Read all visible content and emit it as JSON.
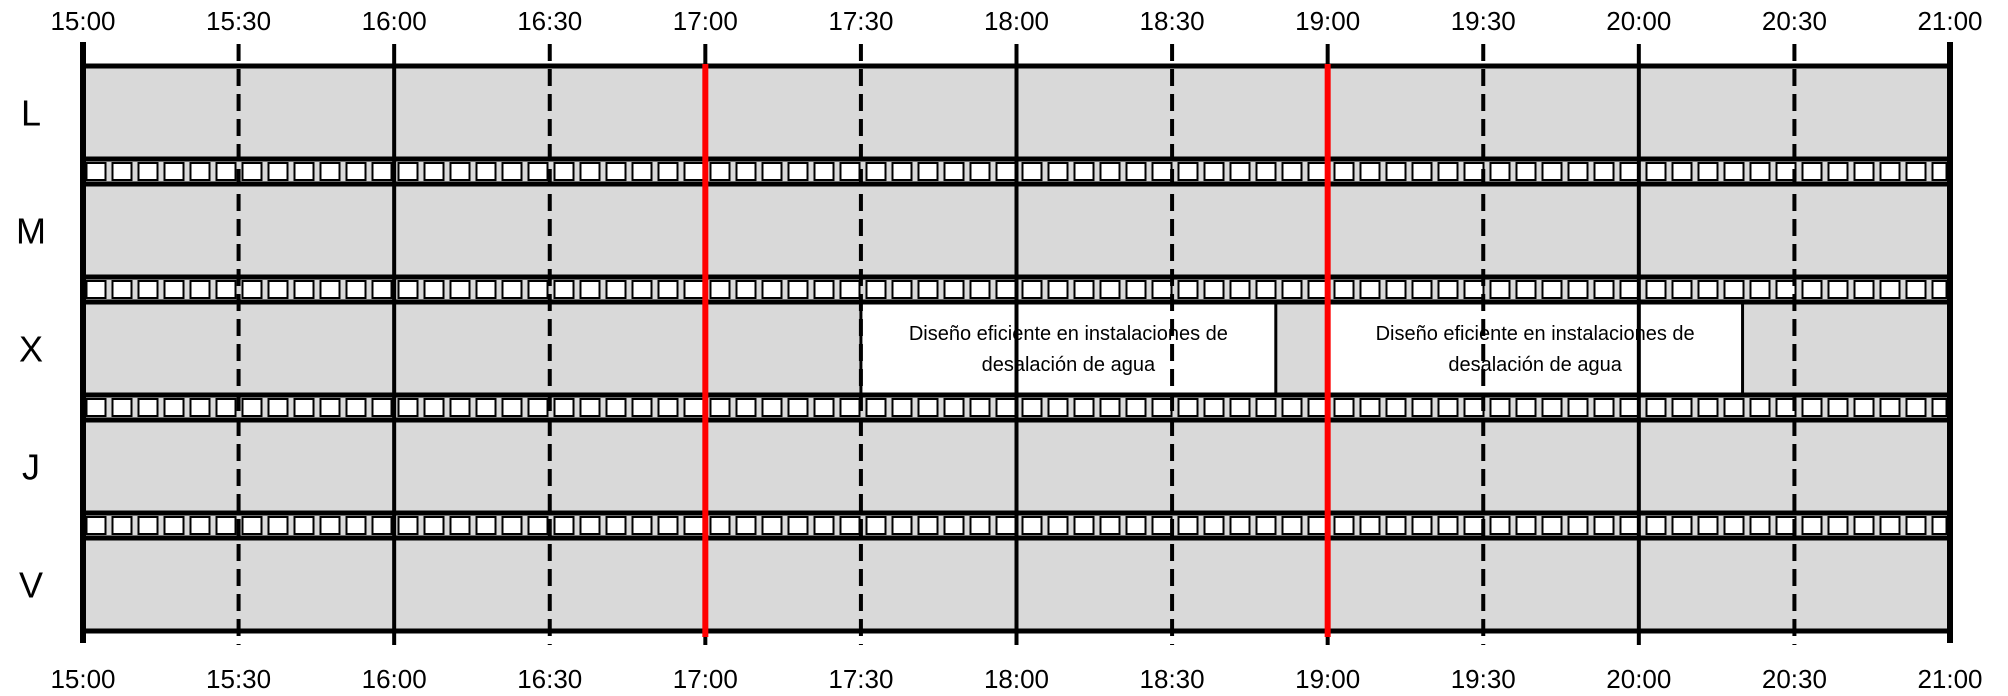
{
  "schedule": {
    "time_ticks": [
      "15:00",
      "15:30",
      "16:00",
      "16:30",
      "17:00",
      "17:30",
      "18:00",
      "18:30",
      "19:00",
      "19:30",
      "20:00",
      "20:30",
      "21:00"
    ],
    "days": [
      "L",
      "M",
      "X",
      "J",
      "V"
    ],
    "current_time_markers": [
      "17:00",
      "19:00"
    ],
    "marker_color": "#ff0000",
    "slot_fill": "#d9d9d9",
    "events": [
      {
        "day": "X",
        "start": "17:30",
        "end": "18:50",
        "lines": [
          "Diseño eficiente en instalaciones de",
          "desalación de agua"
        ]
      },
      {
        "day": "X",
        "start": "19:00",
        "end": "20:20",
        "lines": [
          "Diseño eficiente en instalaciones de",
          "desalación de agua"
        ]
      }
    ]
  }
}
